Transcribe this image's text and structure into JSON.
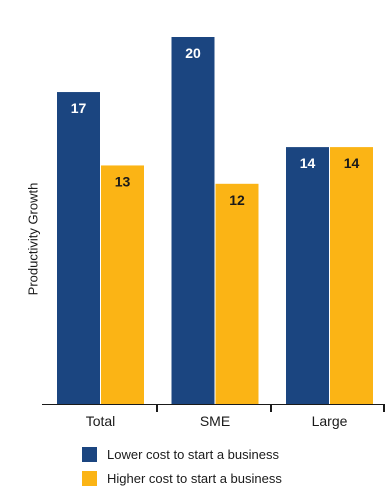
{
  "chart_data": {
    "type": "bar",
    "categories": [
      "Total",
      "SME",
      "Large"
    ],
    "series": [
      {
        "name": "Lower cost to start a business",
        "values": [
          17,
          20,
          14
        ],
        "color": "#1b4580"
      },
      {
        "name": "Higher cost to start a business",
        "values": [
          13,
          12,
          14
        ],
        "color": "#fbb415"
      }
    ],
    "title": "",
    "xlabel": "",
    "ylabel": "Productivity Growth",
    "ylim": [
      0,
      21.5
    ],
    "grid": false,
    "legend": "bottom",
    "data_labels": true,
    "label_color": "#1a1a1a",
    "inner_label_color": "#ffffff"
  }
}
